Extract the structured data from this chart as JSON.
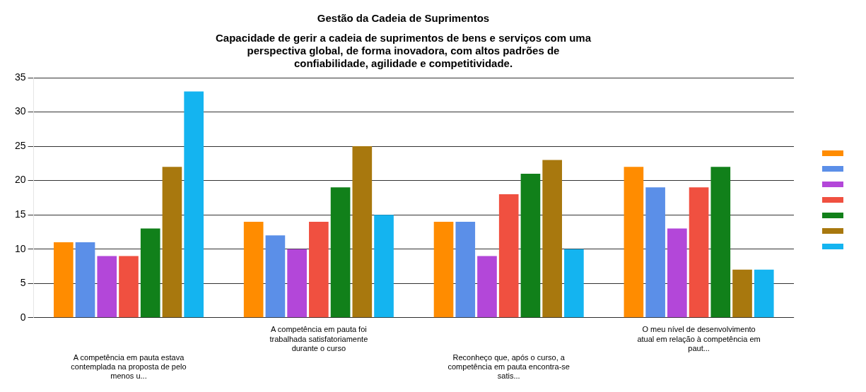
{
  "chart_data": {
    "type": "bar",
    "title": "Gestão da Cadeia de Suprimentos",
    "subtitle": "Capacidade de gerir a cadeia de suprimentos de bens e serviços com uma perspectiva global, de forma inovadora, com altos padrões de confiabilidade, agilidade e competitividade.",
    "categories": [
      "A competência em pauta estava contemplada na proposta de pelo menos u...",
      "A competência em pauta foi trabalhada satisfatoriamente durante o curso",
      "Reconheço que, após o curso, a competência em pauta encontra-se satis...",
      "O meu nível de desenvolvimento atual em relação à competência em paut..."
    ],
    "series": [
      {
        "color": "#ff8c00",
        "values": [
          11,
          14,
          14,
          22
        ]
      },
      {
        "color": "#5b8fe8",
        "values": [
          11,
          12,
          14,
          19
        ]
      },
      {
        "color": "#b347d9",
        "values": [
          9,
          10,
          9,
          13
        ]
      },
      {
        "color": "#f05040",
        "values": [
          9,
          14,
          18,
          19
        ]
      },
      {
        "color": "#11801a",
        "values": [
          13,
          19,
          21,
          22
        ]
      },
      {
        "color": "#a8780e",
        "values": [
          22,
          25,
          23,
          7
        ]
      },
      {
        "color": "#14b4f0",
        "values": [
          33,
          15,
          10,
          7
        ]
      }
    ],
    "ylim": [
      0,
      35
    ],
    "yticks": [
      0,
      5,
      10,
      15,
      20,
      25,
      30,
      35
    ],
    "grid": "y"
  }
}
